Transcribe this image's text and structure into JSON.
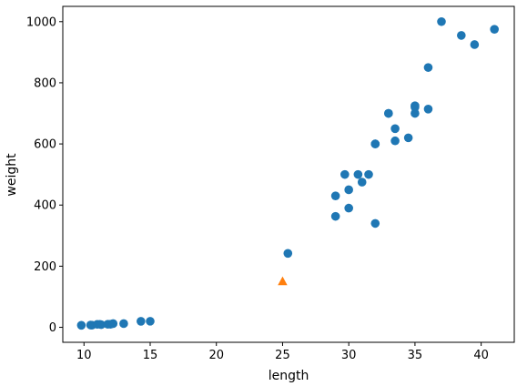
{
  "chart_data": {
    "type": "scatter",
    "title": "",
    "xlabel": "length",
    "ylabel": "weight",
    "xlim": [
      8.4,
      42.5
    ],
    "ylim": [
      -49,
      1050
    ],
    "xticks": [
      10,
      15,
      20,
      25,
      30,
      35,
      40
    ],
    "yticks": [
      0,
      200,
      400,
      600,
      800,
      1000
    ],
    "grid": false,
    "legend": "none",
    "series": [
      {
        "color": "#1f77b4",
        "marker": "circle",
        "points": [
          [
            9.8,
            6.7
          ],
          [
            10.5,
            7.5
          ],
          [
            10.6,
            7.0
          ],
          [
            11.0,
            9.7
          ],
          [
            11.2,
            9.8
          ],
          [
            11.3,
            8.7
          ],
          [
            11.8,
            10.0
          ],
          [
            12.0,
            9.9
          ],
          [
            12.2,
            12.2
          ],
          [
            13.0,
            12.2
          ],
          [
            14.3,
            19.7
          ],
          [
            15.0,
            19.9
          ],
          [
            25.4,
            242
          ],
          [
            29.0,
            430
          ],
          [
            29.0,
            363
          ],
          [
            29.7,
            500
          ],
          [
            30.0,
            450
          ],
          [
            30.0,
            390
          ],
          [
            30.7,
            500
          ],
          [
            31.0,
            475
          ],
          [
            31.5,
            500
          ],
          [
            32.0,
            340
          ],
          [
            32.0,
            600
          ],
          [
            32.0,
            600
          ],
          [
            33.0,
            700
          ],
          [
            33.0,
            700
          ],
          [
            33.5,
            610
          ],
          [
            33.5,
            650
          ],
          [
            34.5,
            620
          ],
          [
            35.0,
            725
          ],
          [
            35.0,
            720
          ],
          [
            35.0,
            700
          ],
          [
            36.0,
            850
          ],
          [
            36.0,
            714
          ],
          [
            37.0,
            1000
          ],
          [
            38.5,
            955
          ],
          [
            39.5,
            925
          ],
          [
            41.0,
            975
          ]
        ]
      },
      {
        "color": "#ff7f0e",
        "marker": "triangle",
        "points": [
          [
            25,
            150
          ]
        ]
      }
    ]
  }
}
